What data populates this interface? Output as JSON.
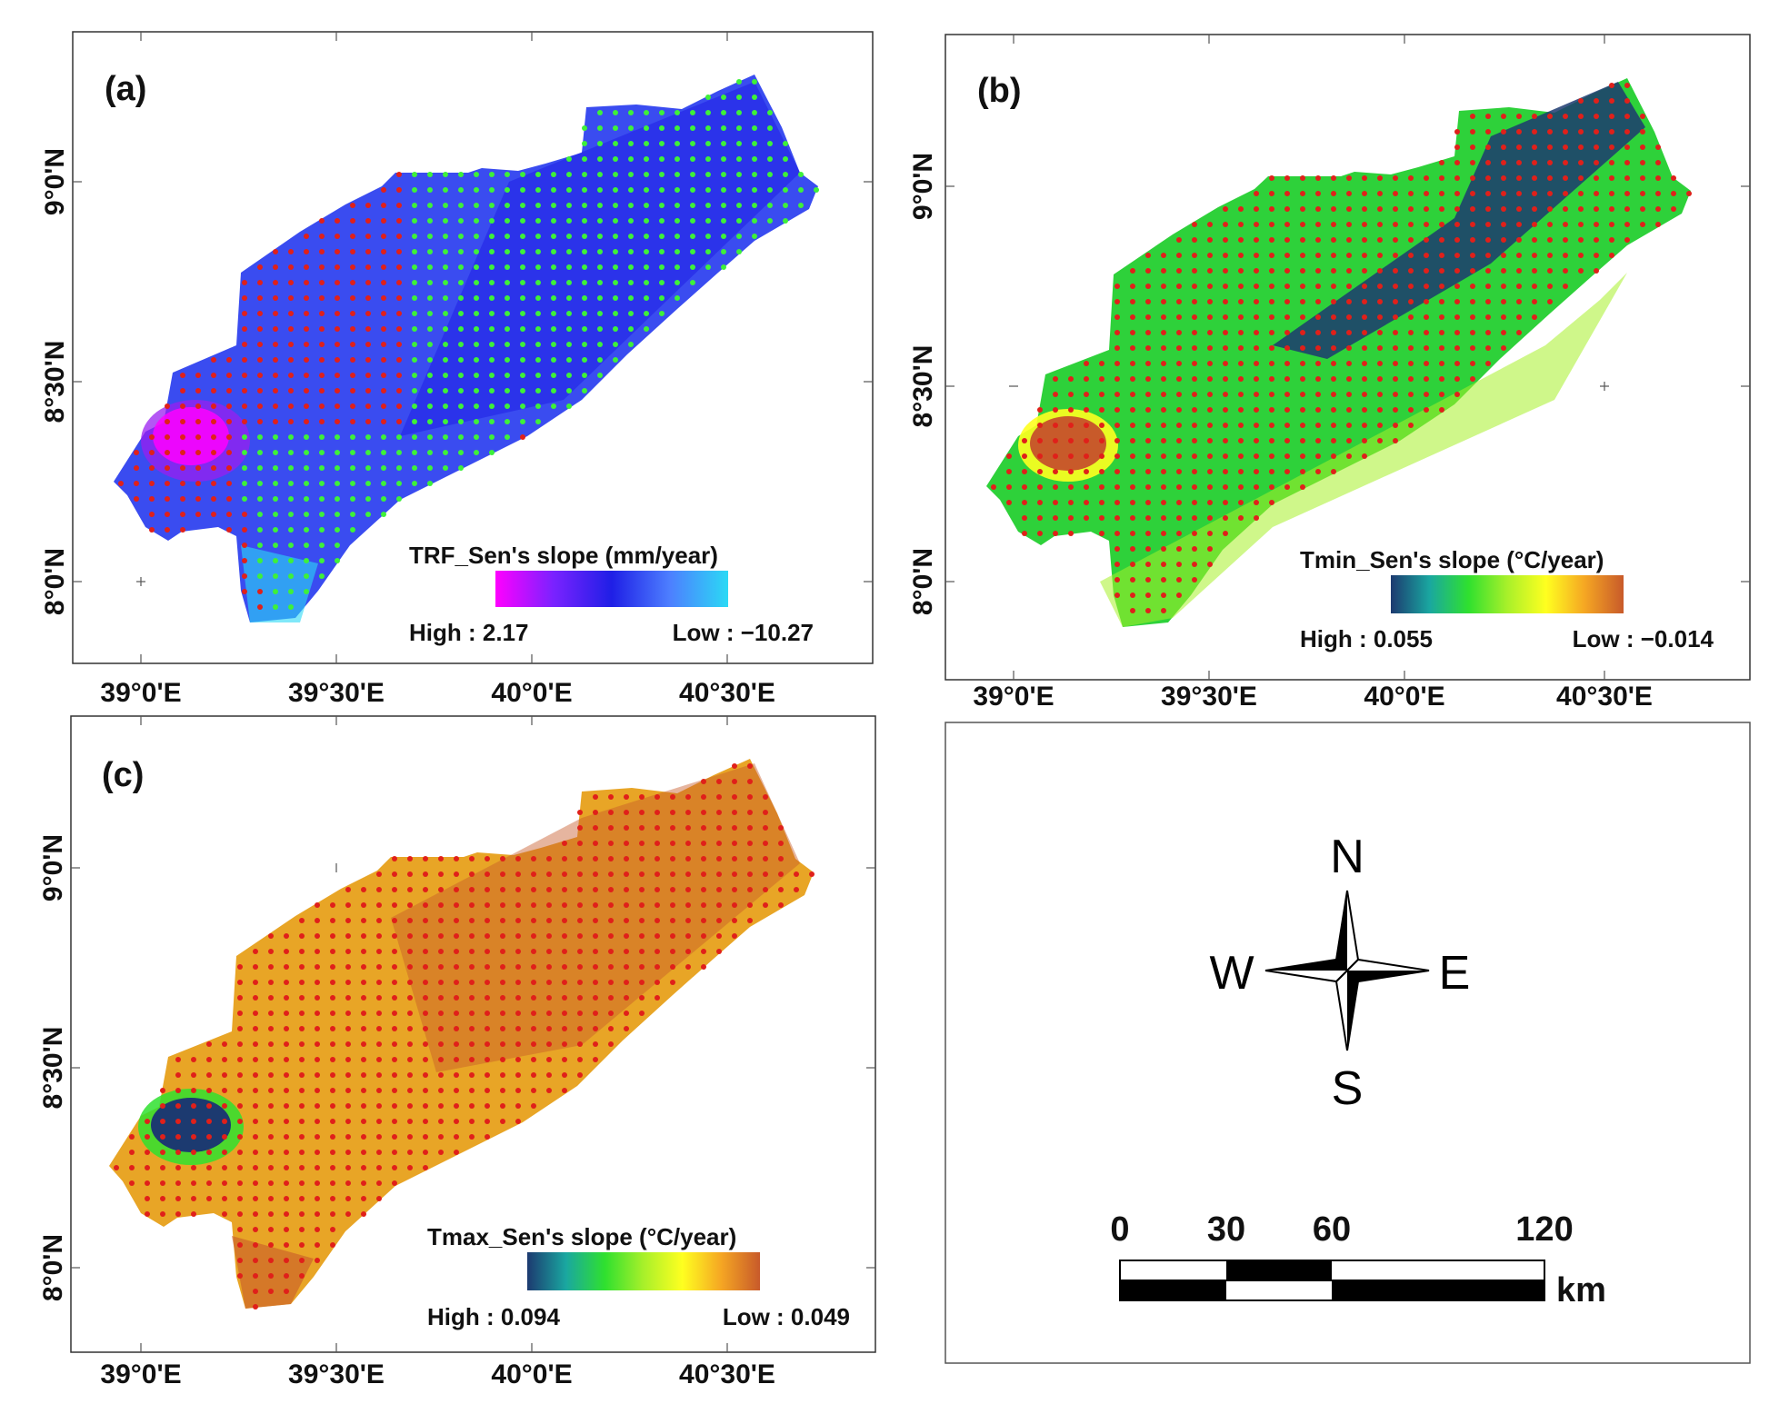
{
  "figure": {
    "panels": [
      {
        "id": "a",
        "label": "(a)",
        "lat_ticks": [
          "9°0'N",
          "8°30'N",
          "8°0'N"
        ],
        "lon_ticks": [
          "39°0'E",
          "39°30'E",
          "40°0'E",
          "40°30'E"
        ],
        "legend": {
          "title": "TRF_Sen's slope (mm/year)",
          "high": "High : 2.17",
          "low": "Low : −10.27",
          "colors": [
            "#ff00ff",
            "#7a22ff",
            "#1f1fe6",
            "#4d7fff",
            "#2bd9f5"
          ]
        },
        "dot_colors": {
          "trend_a": "#e0201a",
          "trend_b": "#3ef03a"
        }
      },
      {
        "id": "b",
        "label": "(b)",
        "lat_ticks": [
          "9°0'N",
          "8°30'N",
          "8°0'N"
        ],
        "lon_ticks": [
          "39°0'E",
          "39°30'E",
          "40°0'E",
          "40°30'E"
        ],
        "legend": {
          "title": "Tmin_Sen's slope (°C/year)",
          "high": "High : 0.055",
          "low": "Low : −0.014",
          "colors": [
            "#1c3a70",
            "#1aa7a0",
            "#2fe02f",
            "#a8f02a",
            "#ffff20",
            "#f5a623",
            "#c85a2a"
          ]
        },
        "dot_colors": {
          "trend_a": "#e0201a"
        }
      },
      {
        "id": "c",
        "label": "(c)",
        "lat_ticks": [
          "9°0'N",
          "8°30'N",
          "8°0'N"
        ],
        "lon_ticks": [
          "39°0'E",
          "39°30'E",
          "40°0'E",
          "40°30'E"
        ],
        "legend": {
          "title": "Tmax_Sen's slope (°C/year)",
          "high": "High : 0.094",
          "low": "Low : 0.049",
          "colors": [
            "#1c3a70",
            "#1aa7a0",
            "#2fe02f",
            "#a8f02a",
            "#ffff20",
            "#f5a623",
            "#c85a2a"
          ]
        },
        "dot_colors": {
          "trend_a": "#e0201a"
        }
      }
    ],
    "compass": {
      "n": "N",
      "s": "S",
      "e": "E",
      "w": "W"
    },
    "scale_bar": {
      "ticks": [
        "0",
        "30",
        "60",
        "120"
      ],
      "unit": "km"
    }
  }
}
